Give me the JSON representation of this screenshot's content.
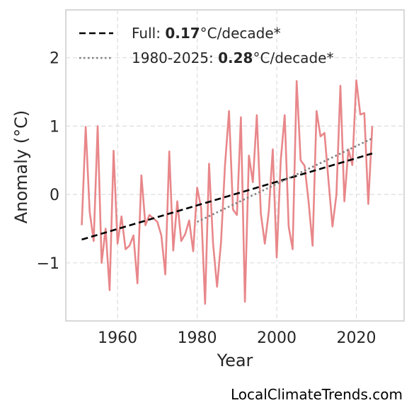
{
  "chart_data": {
    "type": "line",
    "xlabel": "Year",
    "ylabel": "Anomaly (°C)",
    "xlim": [
      1947,
      2032
    ],
    "ylim": [
      -1.85,
      2.7
    ],
    "xticks": [
      1960,
      1980,
      2000,
      2020
    ],
    "yticks": [
      -1,
      0,
      1,
      2
    ],
    "ytick_labels": [
      "−1",
      "0",
      "1",
      "2"
    ],
    "grid": true,
    "legend_position": "top-left",
    "series": [
      {
        "kind": "data",
        "color": "#e8878a",
        "x": [
          1951,
          1952,
          1953,
          1954,
          1955,
          1956,
          1957,
          1958,
          1959,
          1960,
          1961,
          1962,
          1963,
          1964,
          1965,
          1966,
          1967,
          1968,
          1969,
          1970,
          1971,
          1972,
          1973,
          1974,
          1975,
          1976,
          1977,
          1978,
          1979,
          1980,
          1981,
          1982,
          1983,
          1984,
          1985,
          1986,
          1987,
          1988,
          1989,
          1990,
          1991,
          1992,
          1993,
          1994,
          1995,
          1996,
          1997,
          1998,
          1999,
          2000,
          2001,
          2002,
          2003,
          2004,
          2005,
          2006,
          2007,
          2008,
          2009,
          2010,
          2011,
          2012,
          2013,
          2014,
          2015,
          2016,
          2017,
          2018,
          2019,
          2020,
          2021,
          2022,
          2023,
          2024
        ],
        "y": [
          -0.45,
          0.99,
          -0.25,
          -0.68,
          1.0,
          -1.0,
          -0.5,
          -1.4,
          0.64,
          -0.72,
          -0.32,
          -0.8,
          -0.75,
          -0.6,
          -1.3,
          0.28,
          -0.45,
          -0.3,
          -0.35,
          -0.4,
          -0.6,
          -1.17,
          0.63,
          -0.82,
          -0.1,
          -0.68,
          -0.58,
          -0.38,
          -0.83,
          0.1,
          -0.2,
          -1.6,
          0.45,
          -0.72,
          -1.35,
          -0.7,
          0.42,
          1.22,
          -0.22,
          -0.3,
          1.13,
          -1.57,
          0.57,
          0.18,
          1.16,
          -0.28,
          -0.72,
          -0.25,
          0.66,
          -0.92,
          0.5,
          1.16,
          -0.47,
          -0.8,
          1.66,
          0.5,
          0.42,
          -0.1,
          -0.75,
          1.22,
          0.85,
          0.9,
          0.2,
          -0.47,
          0.0,
          1.59,
          -0.1,
          0.66,
          0.43,
          1.67,
          1.17,
          1.19,
          -0.14,
          1.0
        ]
      },
      {
        "kind": "trend-full",
        "name": "Full",
        "rate": "0.17",
        "unit": "°C/decade*",
        "color": "#000000",
        "dash": "dashed",
        "x": [
          1951,
          2024
        ],
        "y": [
          -0.66,
          0.6
        ]
      },
      {
        "kind": "trend-recent",
        "name": "1980-2025",
        "rate": "0.28",
        "unit": "°C/decade*",
        "color": "#808080",
        "dash": "dotted",
        "x": [
          1980,
          2024
        ],
        "y": [
          -0.4,
          0.82
        ]
      }
    ]
  },
  "footer": {
    "credit": "LocalClimateTrends.com"
  }
}
